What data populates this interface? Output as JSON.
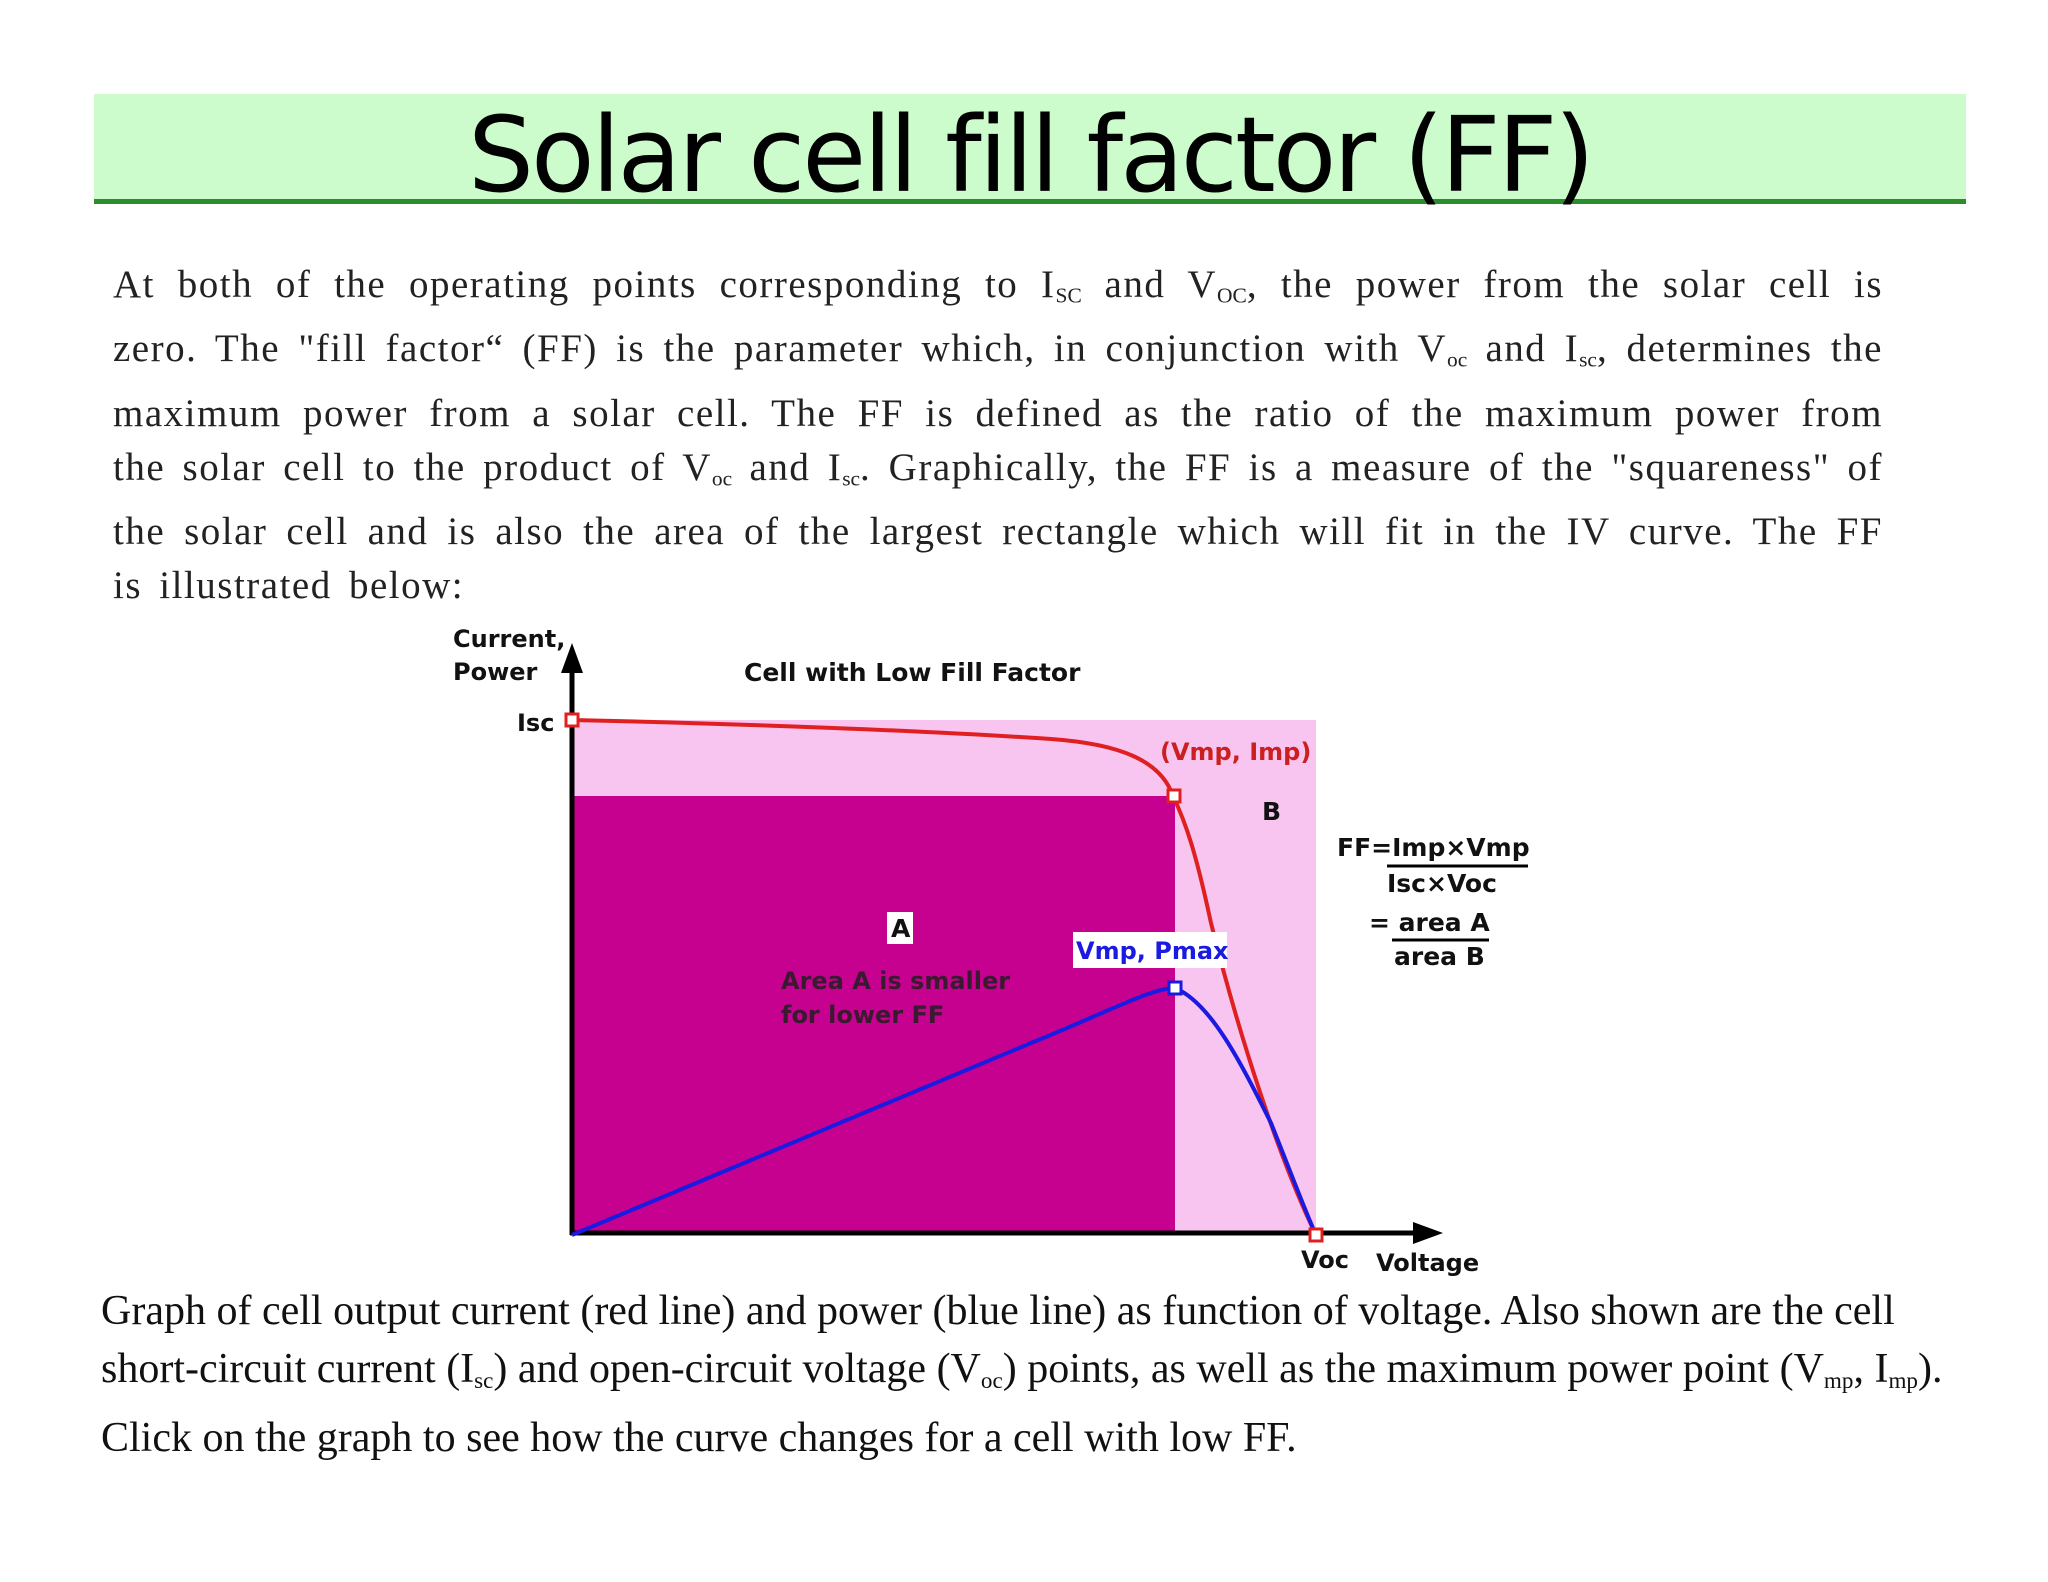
{
  "title": "Solar cell fill factor (FF)",
  "paragraph": [
    {
      "t": "At both of the operating points corresponding to I"
    },
    {
      "t": "SC",
      "sub": true
    },
    {
      "t": " and V"
    },
    {
      "t": "OC",
      "sub": true
    },
    {
      "t": ", the power from the solar cell is zero. The \"fill factor“ (FF) is the parameter which, in conjunction with V"
    },
    {
      "t": "oc",
      "sub": true
    },
    {
      "t": " and I"
    },
    {
      "t": "sc",
      "sub": true
    },
    {
      "t": ", determines the maximum power from a solar cell. The FF is defined as the ratio of the maximum power from the solar cell to the product of V"
    },
    {
      "t": "oc",
      "sub": true
    },
    {
      "t": " and I"
    },
    {
      "t": "sc",
      "sub": true
    },
    {
      "t": ". Graphically, the FF is a measure of the \"squareness\" of the solar cell and is also the area of the largest rectangle which will fit in the IV curve. The FF is illustrated below:"
    }
  ],
  "figure": {
    "y_axis_label_line1": "Current,",
    "y_axis_label_line2": "Power",
    "chart_title": "Cell with Low Fill Factor",
    "isc_label": "Isc",
    "mpp_current_label": "(Vmp, Imp)",
    "region_b_label": "B",
    "region_a_label": "A",
    "mpp_power_label": "Vmp, Pmax",
    "note_line1": "Area A is smaller",
    "note_line2": "for lower FF",
    "formula_line1": "FF=Imp×Vmp",
    "formula_line2": "Isc×Voc",
    "formula_line3": "= area A",
    "formula_line4": "area B",
    "voc_label": "Voc",
    "x_axis_label": "Voltage",
    "colors": {
      "current_curve": "#e02020",
      "power_curve": "#1a1ae0",
      "area_a": "#c6008f",
      "area_b": "#f8c4f0",
      "mpp_label_color": "#cc1f1f",
      "pmax_label_color": "#1a1ae0"
    }
  },
  "caption": [
    {
      "t": "Graph of cell output current (red line) and power (blue line) as function of voltage. Also shown are the cell short-circuit current (I"
    },
    {
      "t": "sc",
      "sub": true
    },
    {
      "t": ") and open-circuit voltage (V"
    },
    {
      "t": "oc",
      "sub": true
    },
    {
      "t": ") points, as well as the maximum power point (V"
    },
    {
      "t": "mp",
      "sub": true
    },
    {
      "t": ", I"
    },
    {
      "t": "mp",
      "sub": true
    },
    {
      "t": "). Click on the graph to see how the curve changes for a cell with low FF."
    }
  ]
}
